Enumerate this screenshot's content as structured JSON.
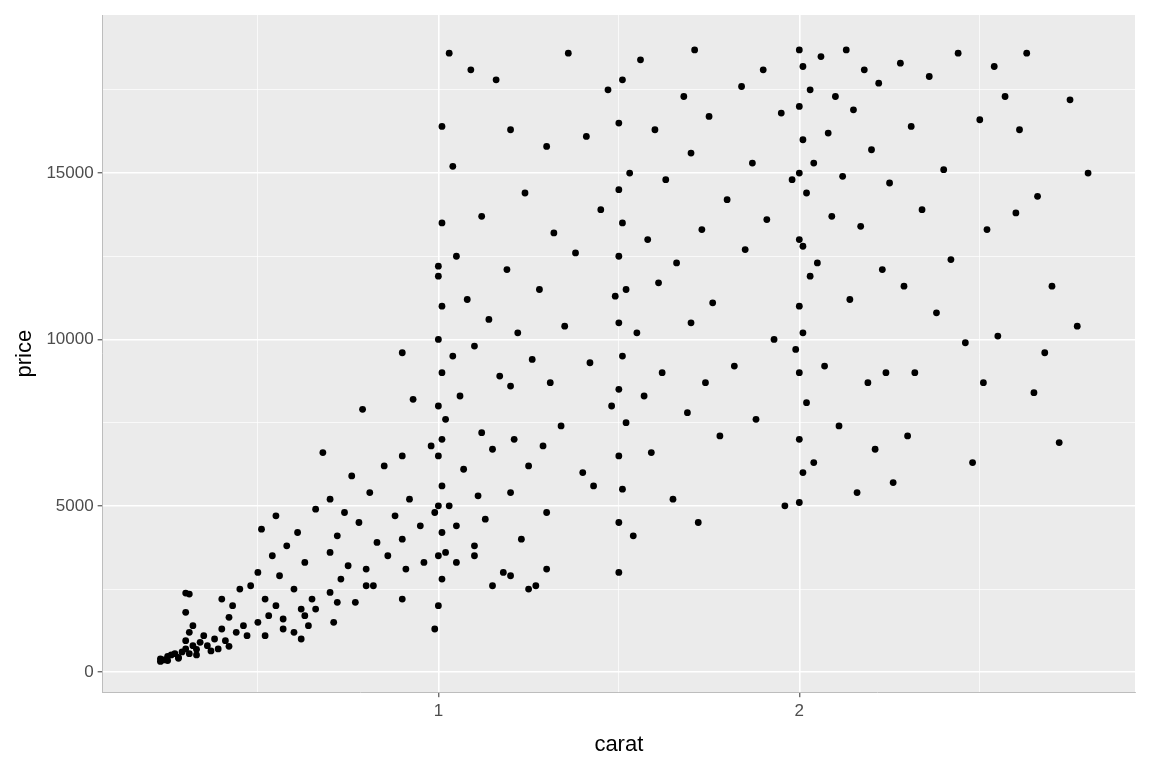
{
  "chart_data": {
    "type": "scatter",
    "x_label": "carat",
    "y_label": "price",
    "color": "#000000",
    "marker": "circle",
    "grid": true,
    "xlim": [
      0.07,
      2.93
    ],
    "ylim": [
      -599,
      19748
    ],
    "xticks": [
      1,
      2
    ],
    "yticks": [
      0,
      5000,
      10000,
      15000
    ],
    "x": [
      0.23,
      0.23,
      0.24,
      0.25,
      0.26,
      0.27,
      0.28,
      0.29,
      0.3,
      0.3,
      0.31,
      0.31,
      0.32,
      0.33,
      0.3,
      0.3,
      0.31,
      0.32,
      0.34,
      0.35,
      0.36,
      0.38,
      0.39,
      0.4,
      0.4,
      0.41,
      0.42,
      0.43,
      0.44,
      0.45,
      0.46,
      0.47,
      0.48,
      0.5,
      0.5,
      0.51,
      0.52,
      0.53,
      0.54,
      0.55,
      0.55,
      0.56,
      0.57,
      0.58,
      0.6,
      0.61,
      0.62,
      0.63,
      0.65,
      0.66,
      0.68,
      0.7,
      0.7,
      0.7,
      0.71,
      0.72,
      0.73,
      0.74,
      0.75,
      0.76,
      0.77,
      0.78,
      0.79,
      0.8,
      0.81,
      0.82,
      0.83,
      0.85,
      0.86,
      0.88,
      0.9,
      0.9,
      0.9,
      0.9,
      0.91,
      0.92,
      0.93,
      0.95,
      0.96,
      0.98,
      0.99,
      0.99,
      1.0,
      1.0,
      1.0,
      1.0,
      1.0,
      1.0,
      1.0,
      1.0,
      1.01,
      1.01,
      1.01,
      1.01,
      1.01,
      1.01,
      1.01,
      1.01,
      1.02,
      1.02,
      1.03,
      1.03,
      1.04,
      1.04,
      1.05,
      1.05,
      1.06,
      1.07,
      1.08,
      1.09,
      1.1,
      1.1,
      1.11,
      1.12,
      1.12,
      1.13,
      1.14,
      1.15,
      1.16,
      1.17,
      1.18,
      1.19,
      1.2,
      1.2,
      1.2,
      1.21,
      1.22,
      1.23,
      1.24,
      1.25,
      1.26,
      1.27,
      1.28,
      1.29,
      1.3,
      1.3,
      1.31,
      1.32,
      1.34,
      1.35,
      1.36,
      1.38,
      1.4,
      1.41,
      1.42,
      1.43,
      1.45,
      1.47,
      1.48,
      1.49,
      1.5,
      1.5,
      1.5,
      1.5,
      1.5,
      1.5,
      1.5,
      1.5,
      1.51,
      1.51,
      1.51,
      1.51,
      1.52,
      1.52,
      1.53,
      1.54,
      1.55,
      1.56,
      1.57,
      1.58,
      1.59,
      1.6,
      1.61,
      1.62,
      1.63,
      1.65,
      1.66,
      1.68,
      1.69,
      1.7,
      1.7,
      1.71,
      1.72,
      1.73,
      1.74,
      1.75,
      1.76,
      1.78,
      1.8,
      1.82,
      1.84,
      1.85,
      1.87,
      1.88,
      1.9,
      1.91,
      1.93,
      1.95,
      1.96,
      1.98,
      1.99,
      2.0,
      2.0,
      2.0,
      2.0,
      2.0,
      2.0,
      2.0,
      2.0,
      2.01,
      2.01,
      2.01,
      2.01,
      2.01,
      2.02,
      2.02,
      2.03,
      2.03,
      2.04,
      2.04,
      2.05,
      2.06,
      2.07,
      2.08,
      2.09,
      2.1,
      2.11,
      2.12,
      2.13,
      2.14,
      2.15,
      2.16,
      2.17,
      2.18,
      2.19,
      2.2,
      2.21,
      2.22,
      2.23,
      2.24,
      2.25,
      2.26,
      2.28,
      2.29,
      2.3,
      2.31,
      2.32,
      2.34,
      2.36,
      2.38,
      2.4,
      2.42,
      2.44,
      2.46,
      2.48,
      2.5,
      2.51,
      2.52,
      2.54,
      2.55,
      2.57,
      2.6,
      2.61,
      2.63,
      2.65,
      2.66,
      2.68,
      2.7,
      2.72,
      2.75,
      2.77,
      2.8,
      0.25,
      0.28,
      0.33,
      0.37,
      0.42,
      0.52,
      0.57,
      0.63,
      0.72,
      0.8,
      1.05,
      1.1,
      1.15,
      1.2,
      1.25,
      1.3,
      0.6,
      0.62,
      0.64,
      0.66
    ],
    "values": [
      326,
      404,
      370,
      480,
      520,
      560,
      420,
      610,
      700,
      950,
      560,
      1200,
      800,
      690,
      1800,
      2380,
      2350,
      1400,
      900,
      1100,
      800,
      1000,
      700,
      1300,
      2200,
      950,
      1650,
      2000,
      1200,
      2500,
      1400,
      1100,
      2600,
      1500,
      3000,
      4300,
      2200,
      1700,
      3500,
      2000,
      4700,
      2900,
      1600,
      3800,
      2500,
      4200,
      1900,
      3300,
      2200,
      4900,
      6600,
      2400,
      3600,
      5200,
      1500,
      4100,
      2800,
      4800,
      3200,
      5900,
      2100,
      4500,
      7900,
      3100,
      5400,
      2600,
      3900,
      6200,
      3500,
      4700,
      2200,
      4000,
      6500,
      9600,
      3100,
      5200,
      8200,
      4400,
      3300,
      6800,
      1300,
      4800,
      2000,
      3500,
      5000,
      6500,
      8000,
      10000,
      11900,
      12200,
      2800,
      4200,
      5600,
      7000,
      9000,
      11000,
      13500,
      16400,
      3600,
      7600,
      5000,
      18600,
      9500,
      15200,
      4400,
      12500,
      8300,
      6100,
      11200,
      18100,
      3800,
      9800,
      5300,
      7200,
      13700,
      4600,
      10600,
      6700,
      17800,
      8900,
      3000,
      12100,
      5400,
      8600,
      16300,
      7000,
      10200,
      4000,
      14400,
      6200,
      9400,
      2600,
      11500,
      6800,
      15800,
      4800,
      8700,
      13200,
      7400,
      10400,
      18600,
      12600,
      6000,
      16100,
      9300,
      5600,
      13900,
      17500,
      8000,
      11300,
      3000,
      4500,
      6500,
      8500,
      10500,
      12500,
      14500,
      16500,
      5500,
      9500,
      13500,
      17800,
      7500,
      11500,
      15000,
      4100,
      10200,
      18400,
      8300,
      13000,
      6600,
      16300,
      11700,
      9000,
      14800,
      5200,
      12300,
      17300,
      7800,
      15600,
      10500,
      18700,
      4500,
      13300,
      8700,
      16700,
      11100,
      7100,
      14200,
      9200,
      17600,
      12700,
      15300,
      7600,
      18100,
      13600,
      10000,
      16800,
      5000,
      14800,
      9700,
      5100,
      7000,
      9000,
      11000,
      13000,
      15000,
      17000,
      18700,
      6000,
      10200,
      12800,
      16000,
      18200,
      8100,
      14400,
      11900,
      17500,
      6300,
      15300,
      12300,
      18500,
      9200,
      16200,
      13700,
      17300,
      7400,
      14900,
      18700,
      11200,
      16900,
      5400,
      13400,
      18100,
      8700,
      15700,
      6700,
      17700,
      12100,
      9000,
      14700,
      5700,
      18300,
      11600,
      7100,
      16400,
      9000,
      13900,
      17900,
      10800,
      15100,
      12400,
      18600,
      9900,
      6300,
      16600,
      8700,
      13300,
      18200,
      10100,
      17300,
      13800,
      16300,
      18600,
      8400,
      14300,
      9600,
      11600,
      6900,
      17200,
      10400,
      15000,
      350,
      450,
      520,
      640,
      780,
      1100,
      1300,
      1700,
      2100,
      2600,
      3300,
      3500,
      2600,
      2900,
      2500,
      3100,
      1200,
      1000,
      1400,
      1900
    ]
  }
}
